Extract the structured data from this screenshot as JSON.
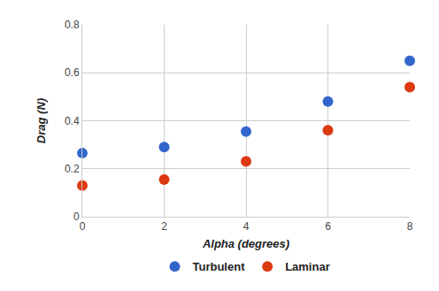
{
  "chart_data": {
    "type": "scatter",
    "x_label": "Alpha (degrees)",
    "y_label": "Drag (N)",
    "x": [
      0,
      2,
      4,
      6,
      8
    ],
    "series": [
      {
        "name": "Turbulent",
        "color": "#3366cc",
        "marker": "circle",
        "values": [
          0.265,
          0.29,
          0.355,
          0.48,
          0.65
        ]
      },
      {
        "name": "Laminar",
        "color": "#dc3912",
        "marker": "circle",
        "values": [
          0.13,
          0.155,
          0.23,
          0.36,
          0.54
        ]
      }
    ],
    "xlim": [
      0,
      8
    ],
    "xticks": [
      0,
      2,
      4,
      6,
      8
    ],
    "ylim": [
      0,
      0.8
    ],
    "yticks": [
      0,
      0.2,
      0.4,
      0.6,
      0.8
    ],
    "grid": true,
    "legend": "bottom"
  }
}
